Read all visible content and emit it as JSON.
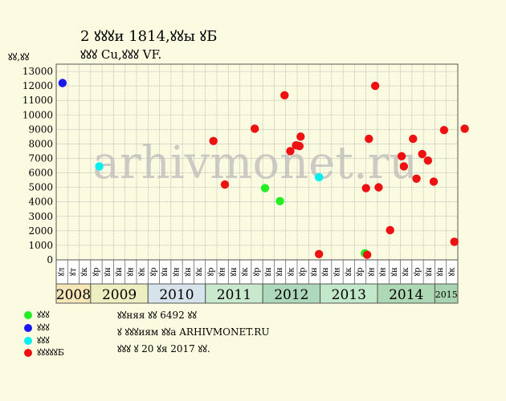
{
  "header": {
    "title": "2 ꙋꙋꙋи 1814,ꙋꙋы ꙋБ",
    "subtitle": "ꙋꙋꙋ Cu,ꙋꙋꙋ VF."
  },
  "footer": {
    "line1": "ꙋꙋняя ꙋꙋ 6492 ꙋꙋ",
    "line2": "ꙋ ꙋꙋꙋиям ꙋꙋа ARHIVMONET.RU",
    "line3": "ꙋꙋꙋ ꙋ 20 ꙋя 2017 ꙋꙋ."
  },
  "watermark": "arhivmonet.ru",
  "colors": {
    "background": "#fbfbe1",
    "grid": "#9a9a9a",
    "green": "#22ee22",
    "blue": "#1a1aee",
    "cyan": "#00f0f0",
    "red": "#ee1111"
  },
  "chart_data": {
    "type": "scatter",
    "ylabel": "ꙋꙋ,ꙋꙋ",
    "ylim": [
      0,
      13000
    ],
    "yticks": [
      0,
      1000,
      2000,
      3000,
      4000,
      5000,
      6000,
      7000,
      8000,
      9000,
      10000,
      11000,
      12000,
      13000
    ],
    "grid": true,
    "x_months": [
      "ꙋл",
      "ꙋт",
      "ꙋк",
      "ꙋр",
      "ꙋн",
      "ꙋн",
      "ꙋн",
      "ꙋк",
      "ꙋр",
      "ꙋн",
      "ꙋн",
      "ꙋн",
      "ꙋк",
      "ꙋр",
      "ꙋн",
      "ꙋн",
      "ꙋк",
      "ꙋр",
      "ꙋн",
      "ꙋн",
      "ꙋк",
      "ꙋр",
      "ꙋн",
      "ꙋн",
      "ꙋн",
      "ꙋк",
      "ꙋр",
      "ꙋн",
      "ꙋн",
      "ꙋн",
      "ꙋк",
      "ꙋр",
      "ꙋн",
      "ꙋн",
      "ꙋк"
    ],
    "x_years": [
      {
        "label": "2008",
        "span": 3,
        "color": "#f7e6b8"
      },
      {
        "label": "2009",
        "span": 5,
        "color": "#ecf0c0"
      },
      {
        "label": "2010",
        "span": 5,
        "color": "#d7e3ea"
      },
      {
        "label": "2011",
        "span": 5,
        "color": "#c9e9cc"
      },
      {
        "label": "2012",
        "span": 5,
        "color": "#aed8bb"
      },
      {
        "label": "2013",
        "span": 5,
        "color": "#c1e8c8"
      },
      {
        "label": "2014",
        "span": 5,
        "color": "#aed8b4"
      },
      {
        "label": "2015",
        "span": 2,
        "color": "#a9d4b1"
      }
    ],
    "series": [
      {
        "name": "ꙋꙋꙋ",
        "color_key": "green",
        "points": [
          [
            17.7,
            4950
          ],
          [
            19.0,
            4050
          ],
          [
            26.4,
            450
          ]
        ]
      },
      {
        "name": "ꙋꙋꙋ",
        "color_key": "blue",
        "points": [
          [
            0.05,
            12200
          ]
        ]
      },
      {
        "name": "ꙋꙋꙋ",
        "color_key": "cyan",
        "points": [
          [
            3.25,
            6450
          ],
          [
            20.5,
            7900
          ],
          [
            22.4,
            5700
          ]
        ]
      },
      {
        "name": "ꙋꙋꙋꙋꙋБ",
        "color_key": "red",
        "points": [
          [
            13.2,
            8200
          ],
          [
            14.2,
            5200
          ],
          [
            16.8,
            9050
          ],
          [
            19.4,
            11350
          ],
          [
            19.9,
            7500
          ],
          [
            20.4,
            7900
          ],
          [
            20.7,
            7850
          ],
          [
            20.8,
            8500
          ],
          [
            22.4,
            400
          ],
          [
            26.5,
            4950
          ],
          [
            26.6,
            350
          ],
          [
            26.75,
            8350
          ],
          [
            27.3,
            12000
          ],
          [
            27.6,
            5000
          ],
          [
            28.6,
            2050
          ],
          [
            29.6,
            7150
          ],
          [
            29.8,
            6450
          ],
          [
            30.6,
            8350
          ],
          [
            30.9,
            5600
          ],
          [
            31.4,
            7300
          ],
          [
            31.9,
            6850
          ],
          [
            32.4,
            5400
          ],
          [
            33.3,
            8950
          ],
          [
            34.2,
            1250
          ],
          [
            35.1,
            9050
          ]
        ]
      }
    ]
  }
}
